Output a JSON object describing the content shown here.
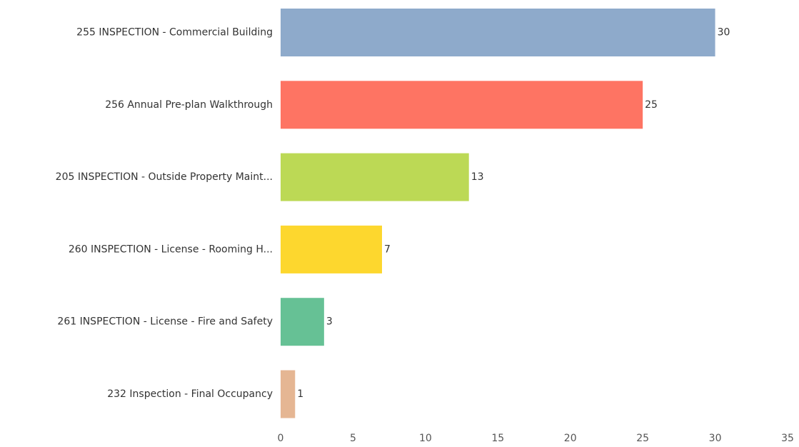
{
  "chart_data": {
    "type": "bar",
    "orientation": "horizontal",
    "categories": [
      "255 INSPECTION - Commercial Building",
      "256 Annual Pre-plan Walkthrough",
      "205 INSPECTION - Outside Property Maint...",
      "260 INSPECTION - License - Rooming H...",
      "261 INSPECTION - License - Fire and Safety",
      "232 Inspection - Final Occupancy"
    ],
    "values": [
      30,
      25,
      13,
      7,
      3,
      1
    ],
    "colors": [
      "#8eaacb",
      "#fe7463",
      "#bcd955",
      "#fdd72e",
      "#66c195",
      "#e5b693"
    ],
    "xlim": [
      0,
      35
    ],
    "xticks": [
      0,
      5,
      10,
      15,
      20,
      25,
      30,
      35
    ],
    "data_labels": true,
    "grid": false
  }
}
